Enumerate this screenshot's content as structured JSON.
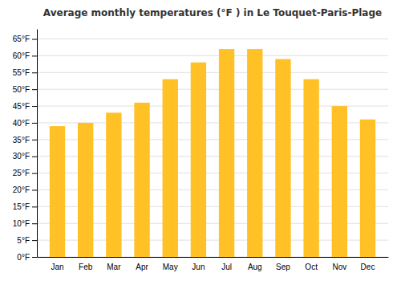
{
  "chart_data": {
    "type": "bar",
    "title": "Average monthly temperatures (°F ) in Le Touquet-Paris-Plage",
    "categories": [
      "Jan",
      "Feb",
      "Mar",
      "Apr",
      "May",
      "Jun",
      "Jul",
      "Aug",
      "Sep",
      "Oct",
      "Nov",
      "Dec"
    ],
    "values": [
      39,
      40,
      43,
      46,
      53,
      58,
      62,
      62,
      59,
      53,
      45,
      41
    ],
    "color": "#FFC125",
    "ylim": [
      0,
      68
    ],
    "yticks": [
      {
        "value": 0,
        "label": "0°F"
      },
      {
        "value": 5,
        "label": "5°F"
      },
      {
        "value": 10,
        "label": "10°F"
      },
      {
        "value": 15,
        "label": "15°F"
      },
      {
        "value": 20,
        "label": "20°F"
      },
      {
        "value": 25,
        "label": "25°F"
      },
      {
        "value": 30,
        "label": "30°F"
      },
      {
        "value": 35,
        "label": "35°F"
      },
      {
        "value": 40,
        "label": "40°F"
      },
      {
        "value": 45,
        "label": "45°F"
      },
      {
        "value": 50,
        "label": "50°F"
      },
      {
        "value": 55,
        "label": "55°F"
      },
      {
        "value": 60,
        "label": "60°F"
      },
      {
        "value": 65,
        "label": "65°F"
      }
    ],
    "grid": true
  }
}
